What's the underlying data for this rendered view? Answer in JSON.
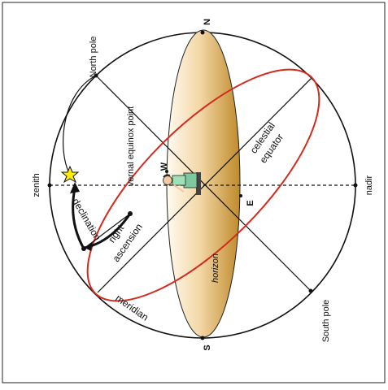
{
  "diagram": {
    "labels": {
      "north_cardinal": "N",
      "south_cardinal": "S",
      "west_cardinal": "W",
      "east_cardinal": "E",
      "zenith": "zenith",
      "nadir": "nadir",
      "north_pole": "North pole",
      "south_pole": "South pole",
      "vernal_equinox": "vernal equinox point",
      "celestial_equator_1": "celestial",
      "celestial_equator_2": "equator",
      "declination": "declination",
      "right_ascension_1": "right",
      "right_ascension_2": "ascension",
      "meridian": "meridian",
      "horizon": "horizon"
    },
    "colors": {
      "celestial_equator": "#d42a1e",
      "horizon_light": "#fff6e6",
      "horizon_dark": "#c08a2e",
      "star": "#ffee00",
      "outline": "#111111"
    }
  }
}
